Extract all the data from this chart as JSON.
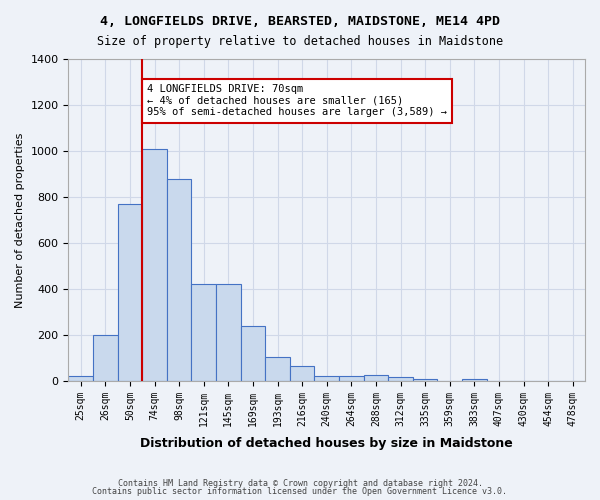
{
  "title": "4, LONGFIELDS DRIVE, BEARSTED, MAIDSTONE, ME14 4PD",
  "subtitle": "Size of property relative to detached houses in Maidstone",
  "xlabel": "Distribution of detached houses by size in Maidstone",
  "ylabel": "Number of detached properties",
  "categories": [
    "25sqm",
    "26sqm",
    "50sqm",
    "74sqm",
    "98sqm",
    "121sqm",
    "145sqm",
    "169sqm",
    "193sqm",
    "216sqm",
    "240sqm",
    "264sqm",
    "288sqm",
    "312sqm",
    "335sqm",
    "359sqm",
    "383sqm",
    "407sqm",
    "430sqm",
    "454sqm",
    "478sqm"
  ],
  "bar_heights": [
    20,
    200,
    770,
    1010,
    880,
    420,
    420,
    240,
    105,
    65,
    20,
    20,
    25,
    15,
    10,
    0,
    10,
    0,
    0,
    0,
    0
  ],
  "bar_color": "#c9d9ed",
  "bar_edge_color": "#4472c4",
  "property_line_x": 74,
  "property_sqm": 70,
  "annotation_text": "4 LONGFIELDS DRIVE: 70sqm\n← 4% of detached houses are smaller (165)\n95% of semi-detached houses are larger (3,589) →",
  "annotation_box_color": "#ffffff",
  "annotation_box_edge": "#cc0000",
  "vline_color": "#cc0000",
  "ylim": [
    0,
    1400
  ],
  "yticks": [
    0,
    200,
    400,
    600,
    800,
    1000,
    1200,
    1400
  ],
  "grid_color": "#d0d8e8",
  "background_color": "#eef2f8",
  "footer1": "Contains HM Land Registry data © Crown copyright and database right 2024.",
  "footer2": "Contains public sector information licensed under the Open Government Licence v3.0."
}
